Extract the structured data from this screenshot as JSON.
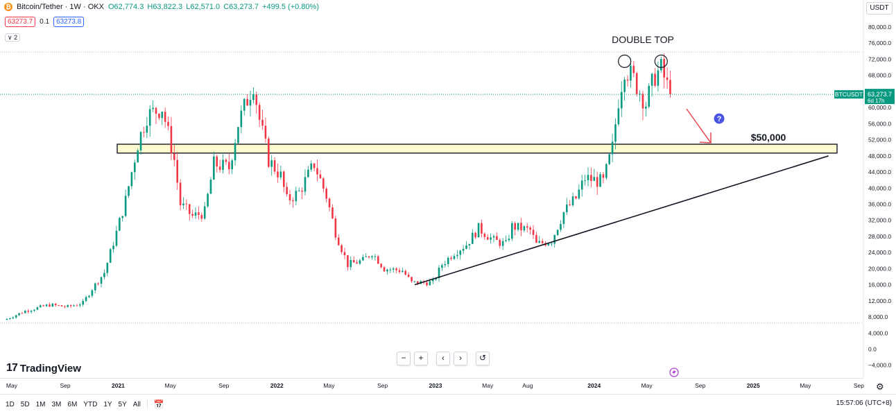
{
  "header": {
    "symbol": "Bitcoin/Tether · 1W · OKX",
    "open": "O62,774.3",
    "high": "H63,822.3",
    "low": "L62,571.0",
    "close": "C63,273.7",
    "change": "+499.5 (+0.80%)",
    "bid": "63273.7",
    "spread": "0.1",
    "ask": "63273.8",
    "indicators_count": "2",
    "currency": "USDT"
  },
  "price_label": {
    "ticker": "BTCUSDT",
    "price": "63,273.7",
    "countdown": "6d 17h"
  },
  "annotations": {
    "double_top": "DOUBLE TOP",
    "target": "$50,000"
  },
  "navigation": {
    "zoom_out": "−",
    "zoom_in": "+",
    "scroll_left": "‹",
    "scroll_right": "›",
    "reset": "↺"
  },
  "branding": "TradingView",
  "bottom": {
    "ranges": [
      "1D",
      "5D",
      "1M",
      "3M",
      "6M",
      "YTD",
      "1Y",
      "5Y",
      "All"
    ],
    "clock": "15:57:06 (UTC+8)"
  },
  "colors": {
    "up": "#089981",
    "down": "#f23645",
    "zone": "#fffbd0",
    "arrow": "#e8474f",
    "help": "#4a56e2"
  },
  "chart_data": {
    "type": "candlestick",
    "interval": "1W",
    "ylim": [
      -4000,
      82000
    ],
    "y_ticks": [
      "80,000.0",
      "76,000.0",
      "72,000.0",
      "68,000.0",
      "64,000.0",
      "60,000.0",
      "56,000.0",
      "52,000.0",
      "48,000.0",
      "44,000.0",
      "40,000.0",
      "36,000.0",
      "32,000.0",
      "28,000.0",
      "24,000.0",
      "20,000.0",
      "16,000.0",
      "12,000.0",
      "8,000.0",
      "4,000.0",
      "0.0",
      "−4,000.0"
    ],
    "x_ticks": [
      "May",
      "Sep",
      "2021",
      "May",
      "Sep",
      "2022",
      "May",
      "Sep",
      "2023",
      "May",
      "Aug",
      "2024",
      "May",
      "Sep",
      "2025",
      "May",
      "Sep"
    ],
    "support_zone": [
      48700,
      50900
    ],
    "trendline": [
      {
        "date": "2022-11-14",
        "value": 16000
      },
      {
        "date": "2025-06-23",
        "value": 48000
      }
    ],
    "double_top_peaks": [
      {
        "date": "2024-03-11",
        "value": 71500
      },
      {
        "date": "2024-06-03",
        "value": 71500
      }
    ],
    "path": [
      {
        "date": "2020-04-20",
        "value": 7500
      },
      {
        "date": "2020-06-01",
        "value": 9500
      },
      {
        "date": "2020-07-27",
        "value": 11000
      },
      {
        "date": "2020-09-07",
        "value": 10500
      },
      {
        "date": "2020-10-12",
        "value": 11500
      },
      {
        "date": "2020-11-02",
        "value": 15000
      },
      {
        "date": "2020-11-30",
        "value": 19000
      },
      {
        "date": "2020-12-28",
        "value": 29000
      },
      {
        "date": "2021-01-18",
        "value": 37000
      },
      {
        "date": "2021-02-15",
        "value": 51000
      },
      {
        "date": "2021-03-08",
        "value": 58000
      },
      {
        "date": "2021-04-12",
        "value": 60000
      },
      {
        "date": "2021-05-10",
        "value": 47000
      },
      {
        "date": "2021-05-24",
        "value": 36000
      },
      {
        "date": "2021-06-21",
        "value": 33000
      },
      {
        "date": "2021-07-19",
        "value": 34000
      },
      {
        "date": "2021-08-09",
        "value": 46000
      },
      {
        "date": "2021-09-13",
        "value": 45000
      },
      {
        "date": "2021-10-04",
        "value": 56000
      },
      {
        "date": "2021-10-25",
        "value": 62000
      },
      {
        "date": "2021-11-08",
        "value": 66000
      },
      {
        "date": "2021-11-22",
        "value": 57000
      },
      {
        "date": "2021-12-13",
        "value": 47000
      },
      {
        "date": "2022-01-10",
        "value": 43000
      },
      {
        "date": "2022-01-24",
        "value": 37000
      },
      {
        "date": "2022-02-21",
        "value": 39000
      },
      {
        "date": "2022-03-28",
        "value": 46000
      },
      {
        "date": "2022-04-25",
        "value": 38000
      },
      {
        "date": "2022-05-16",
        "value": 29000
      },
      {
        "date": "2022-06-13",
        "value": 21000
      },
      {
        "date": "2022-07-18",
        "value": 22000
      },
      {
        "date": "2022-08-08",
        "value": 24000
      },
      {
        "date": "2022-09-05",
        "value": 20000
      },
      {
        "date": "2022-10-17",
        "value": 19500
      },
      {
        "date": "2022-11-07",
        "value": 16500
      },
      {
        "date": "2022-12-26",
        "value": 16600
      },
      {
        "date": "2023-01-16",
        "value": 21000
      },
      {
        "date": "2023-02-13",
        "value": 24000
      },
      {
        "date": "2023-03-13",
        "value": 26000
      },
      {
        "date": "2023-04-10",
        "value": 30000
      },
      {
        "date": "2023-05-15",
        "value": 27000
      },
      {
        "date": "2023-06-12",
        "value": 26000
      },
      {
        "date": "2023-06-26",
        "value": 30500
      },
      {
        "date": "2023-08-07",
        "value": 29500
      },
      {
        "date": "2023-08-21",
        "value": 26000
      },
      {
        "date": "2023-09-25",
        "value": 27000
      },
      {
        "date": "2023-10-23",
        "value": 34000
      },
      {
        "date": "2023-11-20",
        "value": 37500
      },
      {
        "date": "2023-12-11",
        "value": 42500
      },
      {
        "date": "2024-01-22",
        "value": 41500
      },
      {
        "date": "2024-02-12",
        "value": 50000
      },
      {
        "date": "2024-02-26",
        "value": 62000
      },
      {
        "date": "2024-03-11",
        "value": 70000
      },
      {
        "date": "2024-04-01",
        "value": 67000
      },
      {
        "date": "2024-04-29",
        "value": 61000
      },
      {
        "date": "2024-05-20",
        "value": 68000
      },
      {
        "date": "2024-06-03",
        "value": 69500
      },
      {
        "date": "2024-06-24",
        "value": 63273.7
      }
    ]
  }
}
